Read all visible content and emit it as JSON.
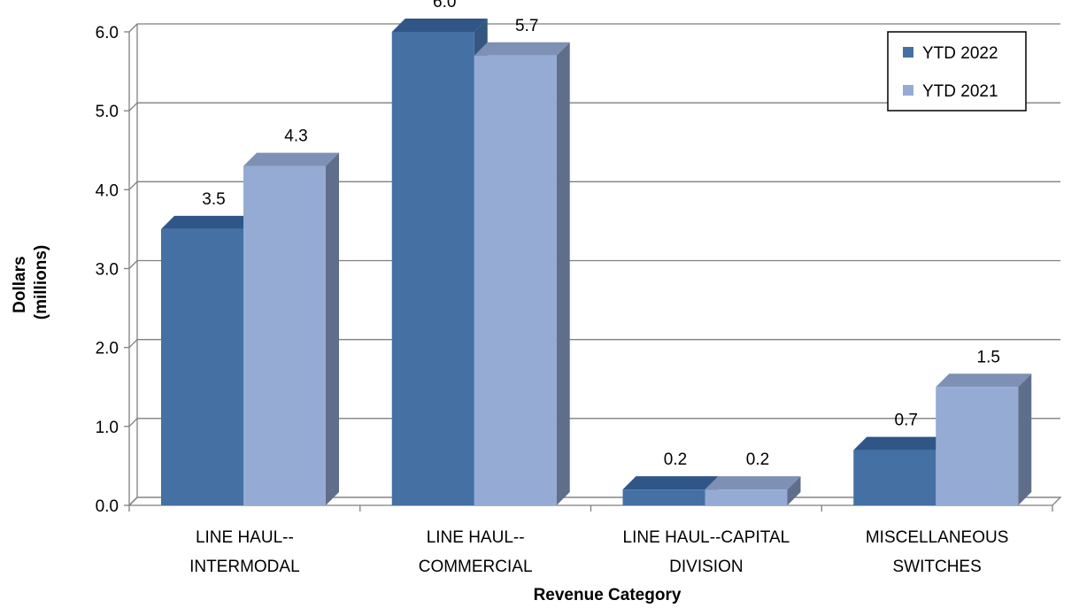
{
  "chart_data": {
    "type": "bar",
    "categories": [
      [
        "LINE HAUL--",
        "INTERMODAL"
      ],
      [
        "LINE HAUL--",
        "COMMERCIAL"
      ],
      [
        "LINE HAUL--CAPITAL",
        "DIVISION"
      ],
      [
        "MISCELLANEOUS",
        "SWITCHES"
      ]
    ],
    "series": [
      {
        "name": "YTD 2022",
        "values": [
          3.5,
          6.0,
          0.2,
          0.7
        ],
        "color": "#4470A4",
        "top_color": "#2F5687",
        "side_color": "#34577F"
      },
      {
        "name": "YTD 2021",
        "values": [
          4.3,
          5.7,
          0.2,
          1.5
        ],
        "color": "#95ABD3",
        "top_color": "#7E90B4",
        "side_color": "#5F6E8B"
      }
    ],
    "data_labels": [
      [
        "3.5",
        "6.0",
        "0.2",
        "0.7"
      ],
      [
        "4.3",
        "5.7",
        "0.2",
        "1.5"
      ]
    ],
    "ylim": [
      0,
      6
    ],
    "yticks": [
      "0.0",
      "1.0",
      "2.0",
      "3.0",
      "4.0",
      "5.0",
      "6.0"
    ],
    "ylabel": [
      "Dollars",
      "(millions)"
    ],
    "xlabel": "Revenue Category",
    "title": "",
    "grid": true,
    "legend_position": "top-right",
    "style": "3d-clustered-column"
  }
}
